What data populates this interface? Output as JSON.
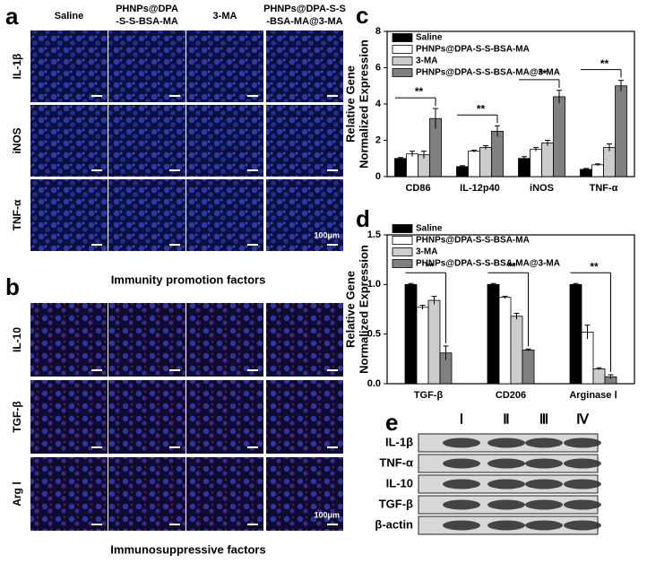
{
  "panels": {
    "a": {
      "label": "a",
      "columns": [
        [
          "Saline"
        ],
        [
          "PHNPs@DPA",
          "-S-S-BSA-MA"
        ],
        [
          "3-MA"
        ],
        [
          "PHNPs@DPA-S-S",
          "-BSA-MA@3-MA"
        ]
      ],
      "rows": [
        "IL-1β",
        "iNOS",
        "TNF-α"
      ],
      "scale": "100μm",
      "caption": "Immunity promotion factors"
    },
    "b": {
      "label": "b",
      "rows": [
        "IL-10",
        "TGF-β",
        "Arg Ⅰ"
      ],
      "scale": "100μm",
      "caption": "Immunosuppressive factors"
    },
    "e": {
      "label": "e",
      "lanes": [
        "Ⅰ",
        "Ⅱ",
        "Ⅲ",
        "Ⅳ"
      ],
      "rows": [
        "IL-1β",
        "TNF-α",
        "IL-10",
        "TGF-β",
        "β-actin"
      ]
    }
  },
  "chart_data": [
    {
      "type": "bar",
      "panel_label": "c",
      "ylabel": [
        "Relative Gene",
        "Normalized Expression"
      ],
      "categories": [
        "CD86",
        "IL-12p40",
        "iNOS",
        "TNF-α"
      ],
      "series": [
        {
          "name": "Saline",
          "color": "#000000",
          "values": [
            1.0,
            0.55,
            1.0,
            0.4
          ],
          "errors": [
            0.05,
            0.05,
            0.1,
            0.05
          ]
        },
        {
          "name": "PHNPs@DPA-S-S-BSA-MA",
          "color": "#ffffff",
          "values": [
            1.25,
            1.4,
            1.5,
            0.65
          ],
          "errors": [
            0.15,
            0.05,
            0.1,
            0.05
          ]
        },
        {
          "name": "3-MA",
          "color": "#cccccc",
          "values": [
            1.2,
            1.6,
            1.85,
            1.6
          ],
          "errors": [
            0.2,
            0.1,
            0.15,
            0.2
          ]
        },
        {
          "name": "PHNPs@DPA-S-S-BSA-MA@3-MA",
          "color": "#808080",
          "values": [
            3.2,
            2.5,
            4.4,
            5.0
          ],
          "errors": [
            0.55,
            0.3,
            0.35,
            0.3
          ]
        }
      ],
      "annotations": [
        "**",
        "**",
        "**",
        "**"
      ],
      "ylim": [
        0,
        8
      ],
      "yticks": [
        0,
        2,
        4,
        6,
        8
      ],
      "legend": "top-left"
    },
    {
      "type": "bar",
      "panel_label": "d",
      "ylabel": [
        "Relative Gene",
        "Normalized Expression"
      ],
      "categories": [
        "TGF-β",
        "CD206",
        "Arginase Ⅰ"
      ],
      "series": [
        {
          "name": "Saline",
          "color": "#000000",
          "values": [
            1.0,
            1.0,
            1.0
          ],
          "errors": [
            0.01,
            0.01,
            0.01
          ]
        },
        {
          "name": "PHNPs@DPA-S-S-BSA-MA",
          "color": "#ffffff",
          "values": [
            0.77,
            0.87,
            0.52
          ],
          "errors": [
            0.02,
            0.01,
            0.07
          ]
        },
        {
          "name": "3-MA",
          "color": "#cccccc",
          "values": [
            0.84,
            0.68,
            0.15
          ],
          "errors": [
            0.04,
            0.03,
            0.01
          ]
        },
        {
          "name": "PHNPs@DPA-S-S-BSA-MA@3-MA",
          "color": "#808080",
          "values": [
            0.31,
            0.34,
            0.07
          ],
          "errors": [
            0.07,
            0.01,
            0.02
          ]
        }
      ],
      "annotations": [
        "**",
        "**",
        "**"
      ],
      "ylim": [
        0,
        1.5
      ],
      "yticks": [
        {
          "value": 0,
          "label": "0.0"
        },
        {
          "value": 0.5,
          "label": "0.5"
        },
        {
          "value": 1,
          "label": "1.0"
        },
        {
          "value": 1.5,
          "label": "1.5"
        }
      ],
      "legend": "top-left"
    }
  ]
}
